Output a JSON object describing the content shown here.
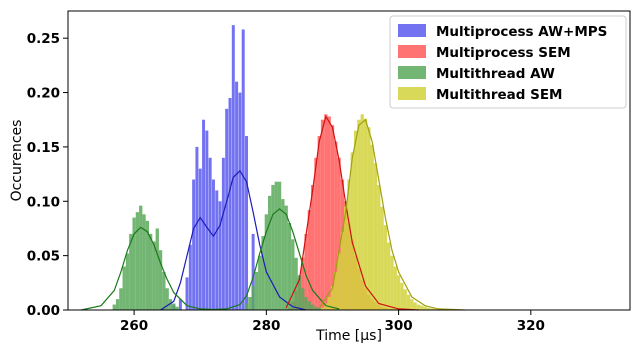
{
  "chart_data": {
    "type": "bar",
    "title": "",
    "xlabel": "Time [µs]",
    "ylabel": "Occurences",
    "xlim": [
      250,
      335
    ],
    "ylim": [
      0,
      0.275
    ],
    "xticks": [
      260,
      280,
      300,
      320
    ],
    "yticks": [
      0.0,
      0.05,
      0.1,
      0.15,
      0.2,
      0.25
    ],
    "ytick_labels": [
      "0.00",
      "0.05",
      "0.10",
      "0.15",
      "0.20",
      "0.25"
    ],
    "grid": false,
    "legend_position": "top-right",
    "series": [
      {
        "name": "Multiprocess AW+MPS",
        "color": "#5a5af0",
        "bar_width": 0.45,
        "x": [
          266,
          267,
          268,
          268.5,
          269,
          269.5,
          270,
          270.5,
          271,
          271.5,
          272,
          272.5,
          273,
          273.5,
          274,
          274.5,
          275,
          275.5,
          276,
          276.5,
          277,
          278
        ],
        "values": [
          0.005,
          0.01,
          0.03,
          0.06,
          0.12,
          0.15,
          0.13,
          0.175,
          0.165,
          0.14,
          0.12,
          0.11,
          0.1,
          0.14,
          0.185,
          0.195,
          0.262,
          0.21,
          0.2,
          0.258,
          0.16,
          0.07
        ],
        "curve_color": "#1c1cb8",
        "curve": {
          "x": [
            264,
            266,
            267,
            268,
            269,
            270,
            271,
            272,
            273,
            274,
            275,
            276,
            277,
            278,
            279,
            280,
            282,
            284,
            286
          ],
          "y": [
            0.0,
            0.008,
            0.025,
            0.05,
            0.075,
            0.085,
            0.076,
            0.068,
            0.078,
            0.1,
            0.122,
            0.128,
            0.118,
            0.09,
            0.06,
            0.035,
            0.012,
            0.003,
            0.0
          ]
        }
      },
      {
        "name": "Multiprocess SEM",
        "color": "#ff5a5a",
        "bar_width": 0.5,
        "x": [
          283.5,
          284,
          284.5,
          285,
          285.5,
          286,
          286.5,
          287,
          287.5,
          288,
          288.5,
          289,
          289.5,
          290,
          290.5,
          291,
          291.5,
          292,
          292.5,
          293,
          293.5,
          294,
          294.5,
          295,
          295.5,
          296,
          296.5,
          297,
          297.5,
          298,
          298.5,
          299,
          299.5,
          300
        ],
        "values": [
          0.002,
          0.008,
          0.018,
          0.03,
          0.048,
          0.07,
          0.092,
          0.115,
          0.14,
          0.16,
          0.175,
          0.18,
          0.178,
          0.17,
          0.155,
          0.14,
          0.12,
          0.1,
          0.08,
          0.065,
          0.05,
          0.038,
          0.028,
          0.02,
          0.014,
          0.01,
          0.007,
          0.005,
          0.003,
          0.002,
          0.001,
          0.001,
          0.0005,
          0.0003
        ],
        "curve_color": "#d01010",
        "curve": {
          "x": [
            283,
            285,
            287,
            288,
            289,
            290,
            291,
            292,
            293,
            295,
            297,
            300,
            303
          ],
          "y": [
            0.002,
            0.028,
            0.11,
            0.155,
            0.178,
            0.168,
            0.138,
            0.098,
            0.062,
            0.022,
            0.006,
            0.001,
            0.0
          ]
        }
      },
      {
        "name": "Multithread AW",
        "color": "#5aa85a",
        "bar_width": 0.5,
        "x": [
          257,
          257.5,
          258,
          258.5,
          259,
          259.5,
          260,
          260.5,
          261,
          261.5,
          262,
          262.5,
          263,
          263.5,
          264,
          264.5,
          265,
          265.5,
          266,
          266.5,
          277,
          277.5,
          278,
          278.5,
          279,
          279.5,
          280,
          280.5,
          281,
          281.5,
          282,
          282.5,
          283,
          283.5,
          284,
          284.5,
          285,
          285.5,
          286,
          286.5,
          287,
          287.5,
          288,
          288.5
        ],
        "values": [
          0.005,
          0.01,
          0.02,
          0.04,
          0.052,
          0.07,
          0.085,
          0.09,
          0.096,
          0.088,
          0.082,
          0.07,
          0.063,
          0.075,
          0.055,
          0.035,
          0.02,
          0.01,
          0.006,
          0.003,
          0.006,
          0.012,
          0.022,
          0.035,
          0.05,
          0.068,
          0.088,
          0.105,
          0.115,
          0.118,
          0.118,
          0.102,
          0.096,
          0.08,
          0.065,
          0.048,
          0.032,
          0.02,
          0.012,
          0.008,
          0.005,
          0.003,
          0.002,
          0.001
        ],
        "curve_color": "#1a7a1a",
        "curve": {
          "x": [
            252,
            255,
            257,
            258,
            259,
            260,
            261,
            262,
            263,
            264,
            265,
            266,
            268,
            270,
            272,
            274,
            276,
            277,
            278,
            279,
            280,
            281,
            282,
            283,
            284,
            285,
            286,
            287,
            289,
            291
          ],
          "y": [
            0.0,
            0.004,
            0.018,
            0.035,
            0.055,
            0.07,
            0.076,
            0.072,
            0.06,
            0.043,
            0.028,
            0.016,
            0.004,
            0.001,
            0.0005,
            0.001,
            0.005,
            0.013,
            0.03,
            0.052,
            0.072,
            0.088,
            0.093,
            0.088,
            0.072,
            0.052,
            0.032,
            0.018,
            0.004,
            0.001
          ]
        }
      },
      {
        "name": "Multithread SEM",
        "color": "#d2d23c",
        "bar_width": 0.5,
        "x": [
          288.5,
          289,
          289.5,
          290,
          290.5,
          291,
          291.5,
          292,
          292.5,
          293,
          293.5,
          294,
          294.5,
          295,
          295.5,
          296,
          296.5,
          297,
          297.5,
          298,
          298.5,
          299,
          299.5,
          300,
          300.5,
          301,
          301.5,
          302,
          302.5,
          303,
          303.5,
          304,
          304.5,
          305,
          305.5,
          306
        ],
        "values": [
          0.002,
          0.006,
          0.012,
          0.022,
          0.035,
          0.052,
          0.072,
          0.095,
          0.12,
          0.145,
          0.165,
          0.175,
          0.18,
          0.176,
          0.168,
          0.152,
          0.135,
          0.115,
          0.095,
          0.078,
          0.062,
          0.05,
          0.04,
          0.032,
          0.025,
          0.019,
          0.014,
          0.01,
          0.007,
          0.005,
          0.004,
          0.003,
          0.002,
          0.0015,
          0.001,
          0.0005
        ],
        "curve_color": "#a0a010",
        "curve": {
          "x": [
            288,
            290,
            292,
            293,
            294,
            295,
            296,
            297,
            298,
            299,
            300,
            302,
            304,
            306,
            310
          ],
          "y": [
            0.002,
            0.02,
            0.09,
            0.14,
            0.17,
            0.175,
            0.155,
            0.12,
            0.085,
            0.055,
            0.035,
            0.012,
            0.004,
            0.001,
            0.0
          ]
        }
      }
    ]
  }
}
